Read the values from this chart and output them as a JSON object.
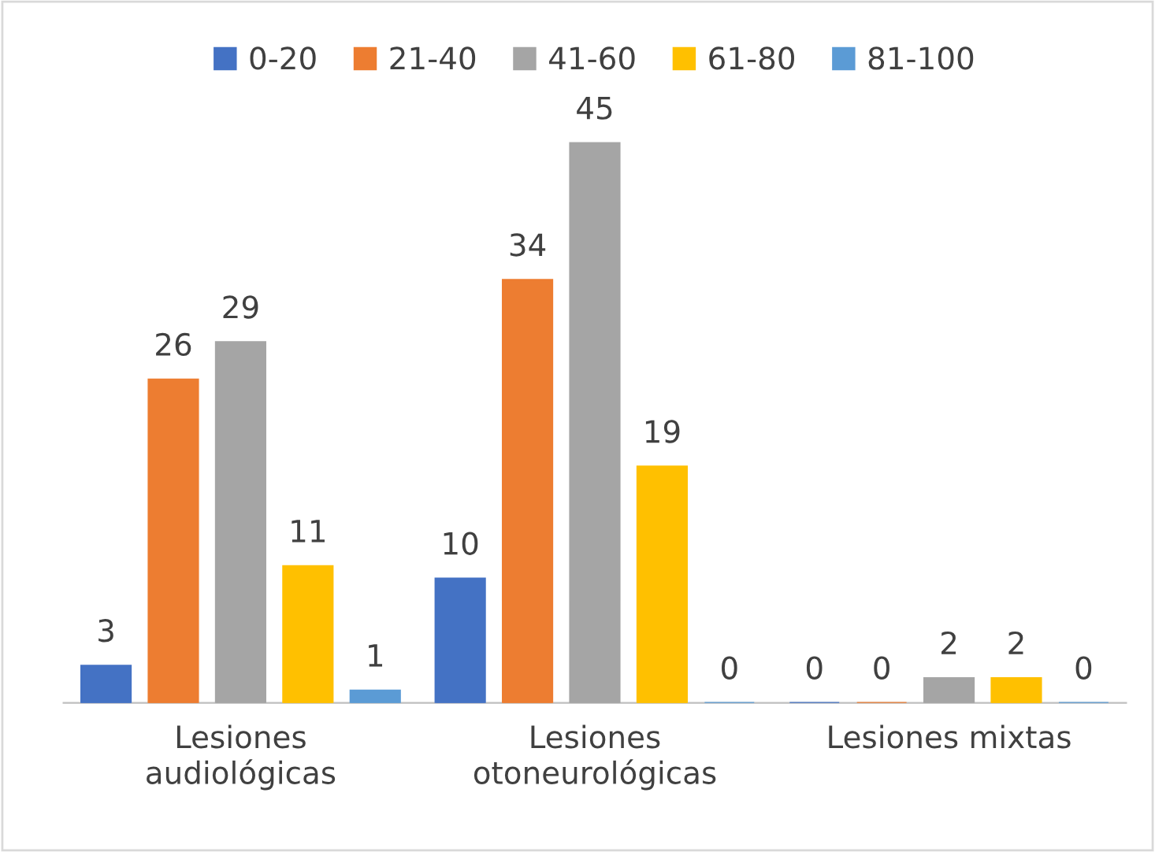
{
  "chart_data": {
    "type": "bar",
    "categories": [
      "Lesiones\naudiológicas",
      "Lesiones\notoneurológicas",
      "Lesiones mixtas"
    ],
    "series": [
      {
        "name": "0-20",
        "color": "#4472c4",
        "values": [
          3,
          10,
          0
        ]
      },
      {
        "name": "21-40",
        "color": "#ed7d31",
        "values": [
          26,
          34,
          0
        ]
      },
      {
        "name": "41-60",
        "color": "#a5a5a5",
        "values": [
          29,
          45,
          2
        ]
      },
      {
        "name": "61-80",
        "color": "#ffc000",
        "values": [
          11,
          19,
          2
        ]
      },
      {
        "name": "81-100",
        "color": "#5b9bd5",
        "values": [
          1,
          0,
          0
        ]
      }
    ],
    "data_labels": true,
    "legend": "top",
    "grid": false
  }
}
